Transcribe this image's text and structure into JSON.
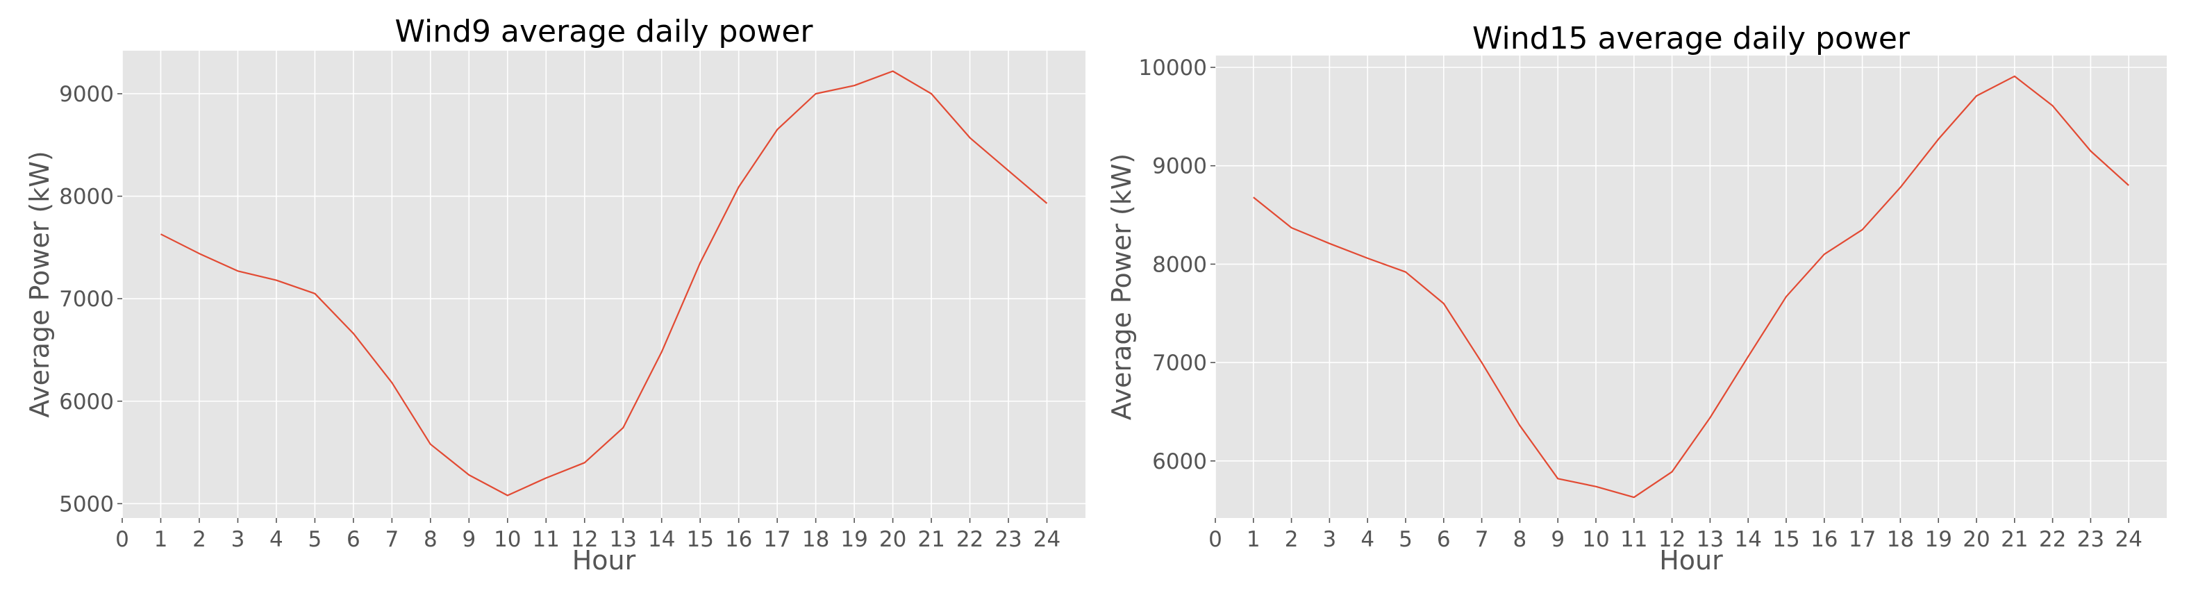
{
  "chart_data": [
    {
      "type": "line",
      "title": "Wind9 average daily power",
      "xlabel": "Hour",
      "ylabel": "Average Power (kW)",
      "xlim": [
        0,
        25
      ],
      "ylim": [
        4860,
        9420
      ],
      "xticks": [
        0,
        1,
        2,
        3,
        4,
        5,
        6,
        7,
        8,
        9,
        10,
        11,
        12,
        13,
        14,
        15,
        16,
        17,
        18,
        19,
        20,
        21,
        22,
        23,
        24
      ],
      "yticks": [
        5000,
        6000,
        7000,
        8000,
        9000
      ],
      "grid": true,
      "series": [
        {
          "color": "#e24a33",
          "x": [
            1,
            2,
            3,
            4,
            5,
            6,
            7,
            8,
            9,
            10,
            11,
            12,
            13,
            14,
            15,
            16,
            17,
            18,
            19,
            20,
            21,
            22,
            23,
            24
          ],
          "y": [
            7630,
            7440,
            7270,
            7180,
            7050,
            6660,
            6180,
            5580,
            5280,
            5080,
            5250,
            5400,
            5740,
            6480,
            7350,
            8090,
            8650,
            9000,
            9080,
            9220,
            9000,
            8570,
            8250,
            7930
          ]
        }
      ]
    },
    {
      "type": "line",
      "title": "Wind15 average daily power",
      "xlabel": "Hour",
      "ylabel": "Average Power (kW)",
      "xlim": [
        0,
        25
      ],
      "ylim": [
        5420,
        10120
      ],
      "xticks": [
        0,
        1,
        2,
        3,
        4,
        5,
        6,
        7,
        8,
        9,
        10,
        11,
        12,
        13,
        14,
        15,
        16,
        17,
        18,
        19,
        20,
        21,
        22,
        23,
        24
      ],
      "yticks": [
        6000,
        7000,
        8000,
        9000,
        10000
      ],
      "grid": true,
      "series": [
        {
          "color": "#e24a33",
          "x": [
            1,
            2,
            3,
            4,
            5,
            6,
            7,
            8,
            9,
            10,
            11,
            12,
            13,
            14,
            15,
            16,
            17,
            18,
            19,
            20,
            21,
            22,
            23,
            24
          ],
          "y": [
            8680,
            8370,
            8210,
            8060,
            7920,
            7600,
            7000,
            6360,
            5820,
            5740,
            5630,
            5890,
            6440,
            7060,
            7670,
            8100,
            8350,
            8780,
            9270,
            9710,
            9910,
            9610,
            9150,
            8800
          ]
        }
      ]
    }
  ]
}
